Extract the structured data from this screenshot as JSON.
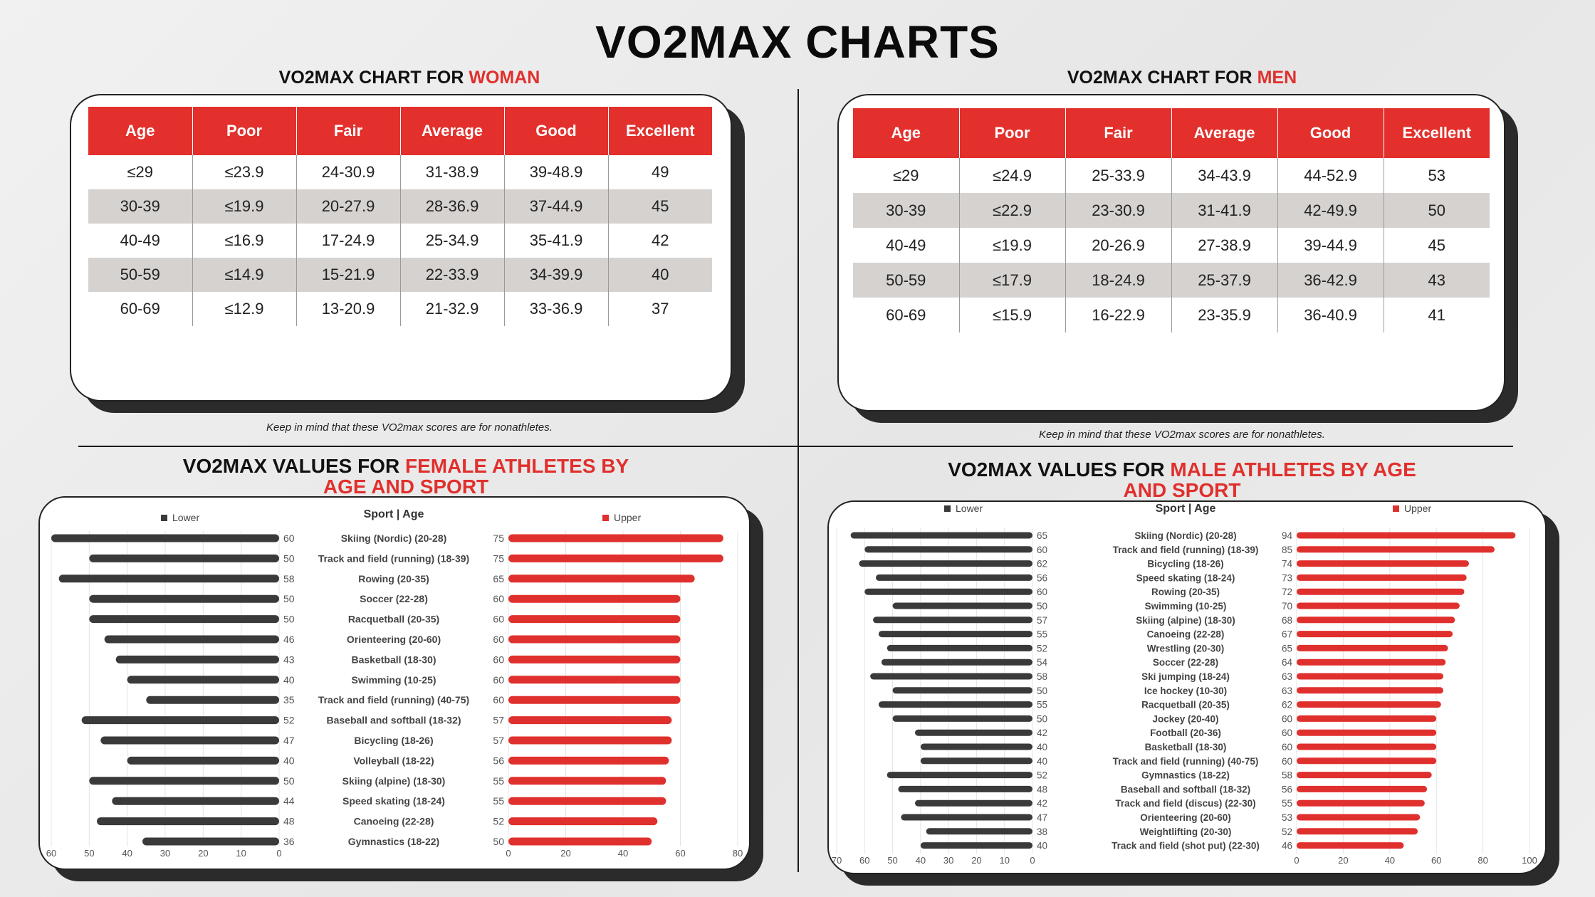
{
  "title": "VO2MAX CHARTS",
  "women_table": {
    "title_prefix": "VO2MAX CHART FOR ",
    "title_highlight": "WOMAN",
    "headers": [
      "Age",
      "Poor",
      "Fair",
      "Average",
      "Good",
      "Excellent"
    ],
    "rows": [
      [
        "≤29",
        "≤23.9",
        "24-30.9",
        "31-38.9",
        "39-48.9",
        "49"
      ],
      [
        "30-39",
        "≤19.9",
        "20-27.9",
        "28-36.9",
        "37-44.9",
        "45"
      ],
      [
        "40-49",
        "≤16.9",
        "17-24.9",
        "25-34.9",
        "35-41.9",
        "42"
      ],
      [
        "50-59",
        "≤14.9",
        "15-21.9",
        "22-33.9",
        "34-39.9",
        "40"
      ],
      [
        "60-69",
        "≤12.9",
        "13-20.9",
        "21-32.9",
        "33-36.9",
        "37"
      ]
    ],
    "footnote": "Keep in mind that these VO2max scores are for nonathletes."
  },
  "men_table": {
    "title_prefix": "VO2MAX CHART FOR ",
    "title_highlight": "MEN",
    "headers": [
      "Age",
      "Poor",
      "Fair",
      "Average",
      "Good",
      "Excellent"
    ],
    "rows": [
      [
        "≤29",
        "≤24.9",
        "25-33.9",
        "34-43.9",
        "44-52.9",
        "53"
      ],
      [
        "30-39",
        "≤22.9",
        "23-30.9",
        "31-41.9",
        "42-49.9",
        "50"
      ],
      [
        "40-49",
        "≤19.9",
        "20-26.9",
        "27-38.9",
        "39-44.9",
        "45"
      ],
      [
        "50-59",
        "≤17.9",
        "18-24.9",
        "25-37.9",
        "36-42.9",
        "43"
      ],
      [
        "60-69",
        "≤15.9",
        "16-22.9",
        "23-35.9",
        "36-40.9",
        "41"
      ]
    ],
    "footnote": "Keep in mind that these VO2max scores are for nonathletes."
  },
  "female_chart_title": {
    "prefix": "VO2MAX VALUES FOR ",
    "highlight_line1": "FEMALE ATHLETES BY",
    "highlight_line2": "AGE AND SPORT"
  },
  "male_chart_title": {
    "prefix": "VO2MAX VALUES FOR ",
    "highlight_line1": "MALE ATHLETES BY AGE",
    "highlight_line2": "AND SPORT"
  },
  "colors": {
    "accent": "#e0302d",
    "lower_bar": "#3a3a3a",
    "shade_row": "#d5d2d0"
  },
  "chart_data": [
    {
      "type": "bar",
      "orientation": "horizontal-butterfly",
      "center_label": "Sport | Age",
      "categories": [
        "Skiing (Nordic) (20-28)",
        "Track and field (running) (18-39)",
        "Rowing (20-35)",
        "Soccer (22-28)",
        "Racquetball (20-35)",
        "Orienteering (20-60)",
        "Basketball (18-30)",
        "Swimming (10-25)",
        "Track and field (running) (40-75)",
        "Baseball and softball (18-32)",
        "Bicycling (18-26)",
        "Volleyball (18-22)",
        "Skiing (alpine) (18-30)",
        "Speed skating (18-24)",
        "Canoeing (22-28)",
        "Gymnastics (18-22)"
      ],
      "series": [
        {
          "name": "Lower",
          "values": [
            60,
            50,
            58,
            50,
            50,
            46,
            43,
            40,
            35,
            52,
            47,
            40,
            50,
            44,
            48,
            36
          ]
        },
        {
          "name": "Upper",
          "values": [
            75,
            75,
            65,
            60,
            60,
            60,
            60,
            60,
            60,
            57,
            57,
            56,
            55,
            55,
            52,
            50
          ]
        }
      ],
      "lower_axis": {
        "ticks": [
          "60",
          "50",
          "40",
          "30",
          "20",
          "10",
          "0"
        ],
        "range": [
          0,
          60
        ]
      },
      "upper_axis": {
        "ticks": [
          "0",
          "20",
          "40",
          "60",
          "80"
        ],
        "range": [
          0,
          80
        ]
      },
      "legend": "top"
    },
    {
      "type": "bar",
      "orientation": "horizontal-butterfly",
      "center_label": "Sport | Age",
      "categories": [
        "Skiing (Nordic) (20-28)",
        "Track and field (running) (18-39)",
        "Bicycling (18-26)",
        "Speed skating (18-24)",
        "Rowing (20-35)",
        "Swimming (10-25)",
        "Skiing (alpine) (18-30)",
        "Canoeing (22-28)",
        "Wrestling (20-30)",
        "Soccer (22-28)",
        "Ski jumping (18-24)",
        "Ice hockey (10-30)",
        "Racquetball (20-35)",
        "Jockey (20-40)",
        "Football (20-36)",
        "Basketball (18-30)",
        "Track and field (running) (40-75)",
        "Gymnastics (18-22)",
        "Baseball and softball (18-32)",
        "Track and field (discus) (22-30)",
        "Orienteering (20-60)",
        "Weightlifting (20-30)",
        "Track and field (shot put) (22-30)"
      ],
      "series": [
        {
          "name": "Lower",
          "values": [
            65,
            60,
            62,
            56,
            60,
            50,
            57,
            55,
            52,
            54,
            58,
            50,
            55,
            50,
            42,
            40,
            40,
            52,
            48,
            42,
            47,
            38,
            40
          ]
        },
        {
          "name": "Upper",
          "values": [
            94,
            85,
            74,
            73,
            72,
            70,
            68,
            67,
            65,
            64,
            63,
            63,
            62,
            60,
            60,
            60,
            60,
            58,
            56,
            55,
            53,
            52,
            46
          ]
        }
      ],
      "lower_axis": {
        "ticks": [
          "70",
          "60",
          "50",
          "40",
          "30",
          "20",
          "10",
          "0"
        ],
        "range": [
          0,
          70
        ]
      },
      "upper_axis": {
        "ticks": [
          "0",
          "20",
          "40",
          "60",
          "80",
          "100"
        ],
        "range": [
          0,
          100
        ]
      },
      "legend": "top"
    }
  ]
}
